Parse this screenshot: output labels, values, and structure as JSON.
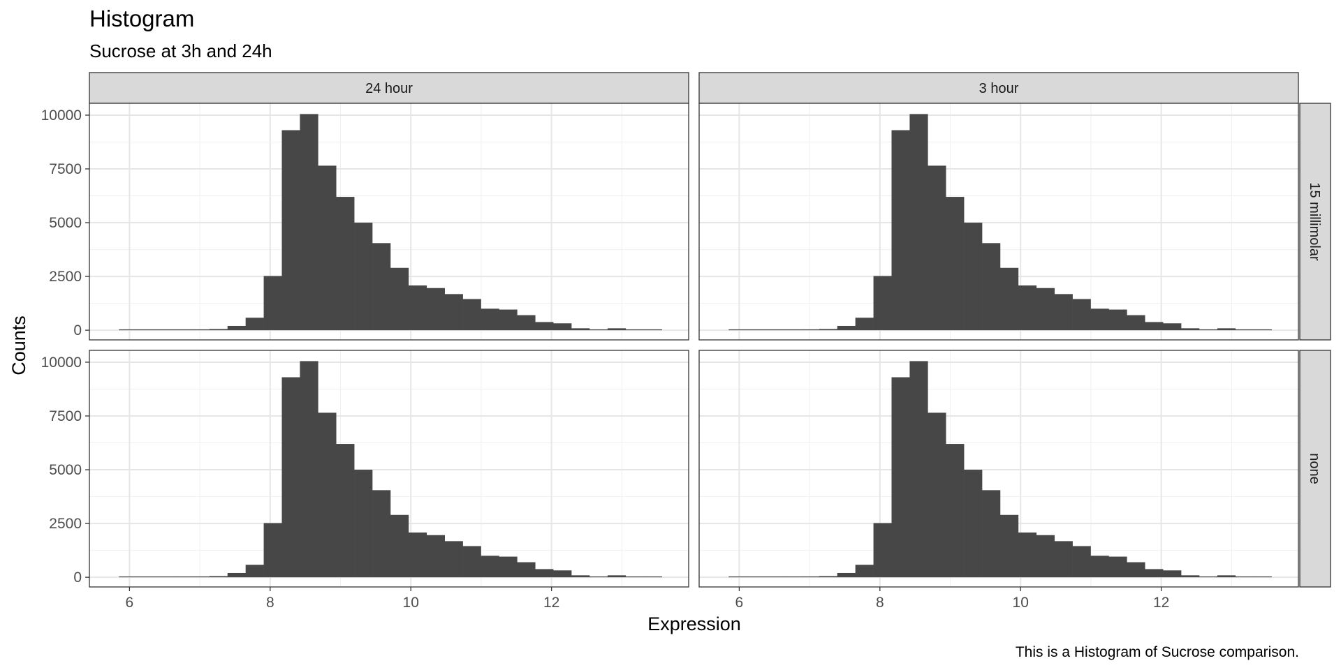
{
  "chart_data": {
    "type": "bar",
    "subtype": "faceted-histogram",
    "title": "Histogram",
    "subtitle": "Sucrose at 3h and 24h",
    "xlabel": "Expression",
    "ylabel": "Counts",
    "caption": "This is a Histogram of Sucrose comparison.",
    "xlim": [
      5.43,
      13.95
    ],
    "ylim": [
      -450,
      10550
    ],
    "x_ticks": [
      6,
      8,
      10,
      12
    ],
    "x_tick_labels": [
      "6",
      "8",
      "10",
      "12"
    ],
    "y_ticks": [
      0,
      2500,
      5000,
      7500,
      10000
    ],
    "y_tick_labels": [
      "0",
      "2500",
      "5000",
      "7500",
      "10000"
    ],
    "column_strips": [
      "24 hour",
      "3 hour"
    ],
    "row_strips": [
      "15 millimolar",
      "none"
    ],
    "bar_color": "#474747",
    "bins": {
      "x_start": 5.85,
      "bin_width": 0.2573,
      "counts": [
        5,
        8,
        10,
        15,
        40,
        55,
        200,
        580,
        2520,
        9300,
        10050,
        7650,
        6200,
        5000,
        4050,
        2900,
        2080,
        1960,
        1680,
        1450,
        1000,
        960,
        700,
        380,
        320,
        90,
        20,
        90,
        15,
        10
      ]
    },
    "panels": [
      {
        "column": "24 hour",
        "row": "15 millimolar"
      },
      {
        "column": "3 hour",
        "row": "15 millimolar"
      },
      {
        "column": "24 hour",
        "row": "none"
      },
      {
        "column": "3 hour",
        "row": "none"
      }
    ]
  }
}
